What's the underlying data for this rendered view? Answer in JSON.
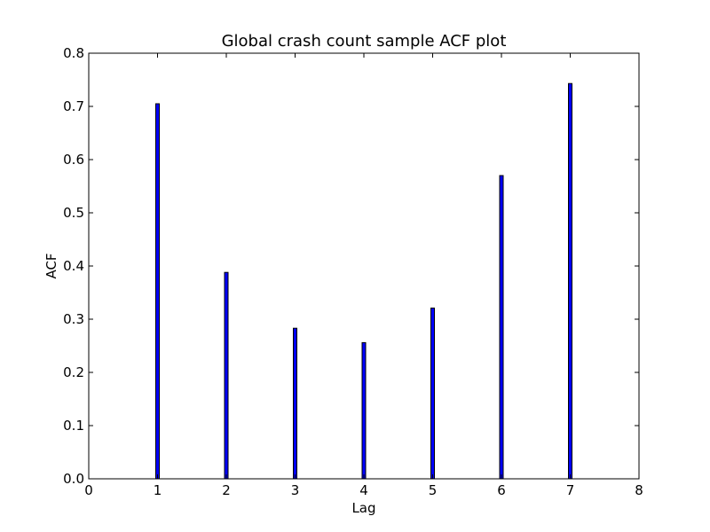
{
  "chart_data": {
    "type": "bar",
    "title": "Global crash count sample ACF plot",
    "xlabel": "Lag",
    "ylabel": "ACF",
    "x": [
      1,
      2,
      3,
      4,
      5,
      6,
      7
    ],
    "values": [
      0.705,
      0.388,
      0.283,
      0.256,
      0.321,
      0.57,
      0.743
    ],
    "xlim": [
      0,
      8
    ],
    "ylim": [
      0,
      0.8
    ],
    "xticks": [
      "0",
      "1",
      "2",
      "3",
      "4",
      "5",
      "6",
      "7",
      "8"
    ],
    "yticks": [
      "0.0",
      "0.1",
      "0.2",
      "0.3",
      "0.4",
      "0.5",
      "0.6",
      "0.7",
      "0.8"
    ],
    "grid": false,
    "colors": {
      "bar_fill": "#0000ff",
      "bar_edge": "#000000"
    }
  }
}
